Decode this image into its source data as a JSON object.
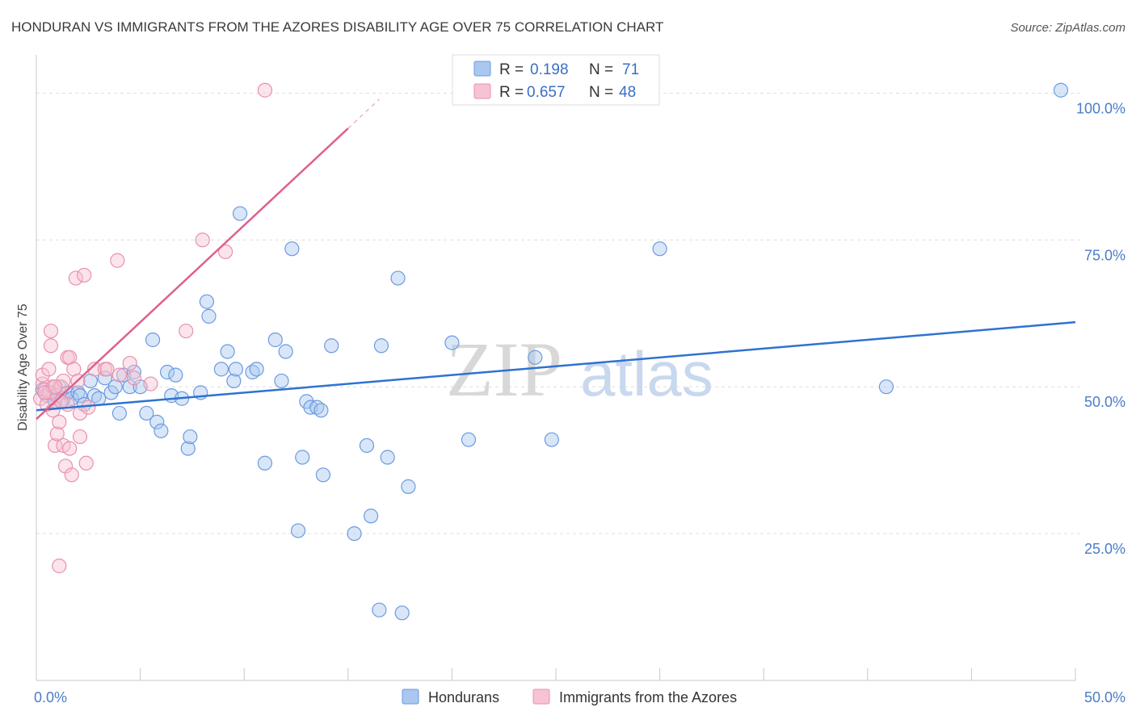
{
  "chart_data": {
    "type": "scatter",
    "title": "HONDURAN VS IMMIGRANTS FROM THE AZORES DISABILITY AGE OVER 75 CORRELATION CHART",
    "source": "Source: ZipAtlas.com",
    "ylabel": "Disability Age Over 75",
    "xlim": [
      0,
      50
    ],
    "ylim": [
      0,
      105
    ],
    "x_tick_labels": [
      {
        "value": 0,
        "label": "0.0%"
      },
      {
        "value": 50,
        "label": "50.0%"
      }
    ],
    "x_minor_ticks": [
      0,
      5,
      10,
      15,
      20,
      25,
      30,
      35,
      40,
      45,
      50
    ],
    "y_tick_labels": [
      {
        "value": 25,
        "label": "25.0%"
      },
      {
        "value": 50,
        "label": "50.0%"
      },
      {
        "value": 75,
        "label": "75.0%"
      },
      {
        "value": 100,
        "label": "100.0%"
      }
    ],
    "grid": true,
    "watermark": {
      "zip": "ZIP",
      "atlas": "atlas"
    },
    "legend": {
      "r_label": "R =",
      "n_label": "N =",
      "entries": [
        {
          "r": "0.198",
          "n": "71"
        },
        {
          "r": "0.657",
          "n": "48"
        }
      ]
    },
    "series": [
      {
        "name": "Hondurans",
        "color": "#6b9be0",
        "fill": "#a9c7f0",
        "trend_color": "#2f72d0",
        "trend": {
          "x0": 0,
          "y0": 46.0,
          "x1": 50,
          "y1": 61.0,
          "dashed_to": null
        },
        "points": [
          [
            0.3,
            49.5
          ],
          [
            0.5,
            48.5
          ],
          [
            0.7,
            49.0
          ],
          [
            0.9,
            47.5
          ],
          [
            1.1,
            50.0
          ],
          [
            1.3,
            48.0
          ],
          [
            1.5,
            49.0
          ],
          [
            1.7,
            48.0
          ],
          [
            2.0,
            49.0
          ],
          [
            2.1,
            48.5
          ],
          [
            2.3,
            47.0
          ],
          [
            2.6,
            51.0
          ],
          [
            2.8,
            48.5
          ],
          [
            3.0,
            48.0
          ],
          [
            3.3,
            51.5
          ],
          [
            3.6,
            49.0
          ],
          [
            3.8,
            50.0
          ],
          [
            4.0,
            45.5
          ],
          [
            4.2,
            52.0
          ],
          [
            4.5,
            50.0
          ],
          [
            4.7,
            52.5
          ],
          [
            5.0,
            50.0
          ],
          [
            5.3,
            45.5
          ],
          [
            5.6,
            58.0
          ],
          [
            5.8,
            44.0
          ],
          [
            6.0,
            42.5
          ],
          [
            6.3,
            52.5
          ],
          [
            6.5,
            48.5
          ],
          [
            6.7,
            52.0
          ],
          [
            7.0,
            48.0
          ],
          [
            7.3,
            39.5
          ],
          [
            7.4,
            41.5
          ],
          [
            7.9,
            49.0
          ],
          [
            8.2,
            64.5
          ],
          [
            8.3,
            62.0
          ],
          [
            8.9,
            53.0
          ],
          [
            9.2,
            56.0
          ],
          [
            9.5,
            51.0
          ],
          [
            9.6,
            53.0
          ],
          [
            9.8,
            79.5
          ],
          [
            10.4,
            52.5
          ],
          [
            10.6,
            53.0
          ],
          [
            11.0,
            37.0
          ],
          [
            11.5,
            58.0
          ],
          [
            11.8,
            51.0
          ],
          [
            12.0,
            56.0
          ],
          [
            12.3,
            73.5
          ],
          [
            12.6,
            25.5
          ],
          [
            12.8,
            38.0
          ],
          [
            13.0,
            47.5
          ],
          [
            13.2,
            46.5
          ],
          [
            13.5,
            46.5
          ],
          [
            13.7,
            46.0
          ],
          [
            13.8,
            35.0
          ],
          [
            14.2,
            57.0
          ],
          [
            15.3,
            25.0
          ],
          [
            15.9,
            40.0
          ],
          [
            16.1,
            28.0
          ],
          [
            16.5,
            12.0
          ],
          [
            16.6,
            57.0
          ],
          [
            16.9,
            38.0
          ],
          [
            17.4,
            68.5
          ],
          [
            17.6,
            11.5
          ],
          [
            17.9,
            33.0
          ],
          [
            20.0,
            57.5
          ],
          [
            20.8,
            41.0
          ],
          [
            24.0,
            55.0
          ],
          [
            24.8,
            41.0
          ],
          [
            30.0,
            73.5
          ],
          [
            40.9,
            50.0
          ],
          [
            49.3,
            100.5
          ]
        ]
      },
      {
        "name": "Immigrants from the Azores",
        "color": "#e891ae",
        "fill": "#f6c3d3",
        "trend_color": "#e05f8a",
        "trend": {
          "x0": 0,
          "y0": 44.5,
          "x1": 15,
          "y1": 94.0,
          "dashed_to": 16.5
        },
        "points": [
          [
            0.2,
            48.0
          ],
          [
            0.3,
            50.5
          ],
          [
            0.3,
            52.0
          ],
          [
            0.4,
            49.5
          ],
          [
            0.5,
            47.0
          ],
          [
            0.6,
            49.0
          ],
          [
            0.6,
            53.0
          ],
          [
            0.7,
            57.0
          ],
          [
            0.7,
            59.5
          ],
          [
            0.8,
            50.0
          ],
          [
            0.8,
            46.0
          ],
          [
            0.9,
            40.0
          ],
          [
            1.0,
            42.0
          ],
          [
            1.0,
            48.5
          ],
          [
            1.1,
            44.0
          ],
          [
            1.1,
            19.5
          ],
          [
            1.2,
            50.0
          ],
          [
            1.3,
            51.0
          ],
          [
            1.3,
            40.0
          ],
          [
            1.4,
            36.5
          ],
          [
            1.5,
            55.0
          ],
          [
            1.5,
            47.0
          ],
          [
            1.6,
            55.0
          ],
          [
            1.6,
            39.5
          ],
          [
            1.7,
            35.0
          ],
          [
            1.8,
            53.0
          ],
          [
            1.9,
            68.5
          ],
          [
            2.0,
            51.0
          ],
          [
            2.1,
            45.5
          ],
          [
            2.1,
            41.5
          ],
          [
            2.3,
            69.0
          ],
          [
            2.4,
            37.0
          ],
          [
            2.5,
            46.5
          ],
          [
            2.8,
            53.0
          ],
          [
            3.3,
            53.0
          ],
          [
            3.4,
            53.0
          ],
          [
            3.9,
            71.5
          ],
          [
            4.0,
            52.0
          ],
          [
            4.5,
            54.0
          ],
          [
            4.7,
            51.5
          ],
          [
            5.5,
            50.5
          ],
          [
            7.2,
            59.5
          ],
          [
            8.0,
            75.0
          ],
          [
            9.1,
            73.0
          ],
          [
            11.0,
            100.5
          ],
          [
            0.4,
            49.0
          ],
          [
            0.9,
            50.0
          ],
          [
            1.2,
            47.5
          ]
        ]
      }
    ]
  }
}
